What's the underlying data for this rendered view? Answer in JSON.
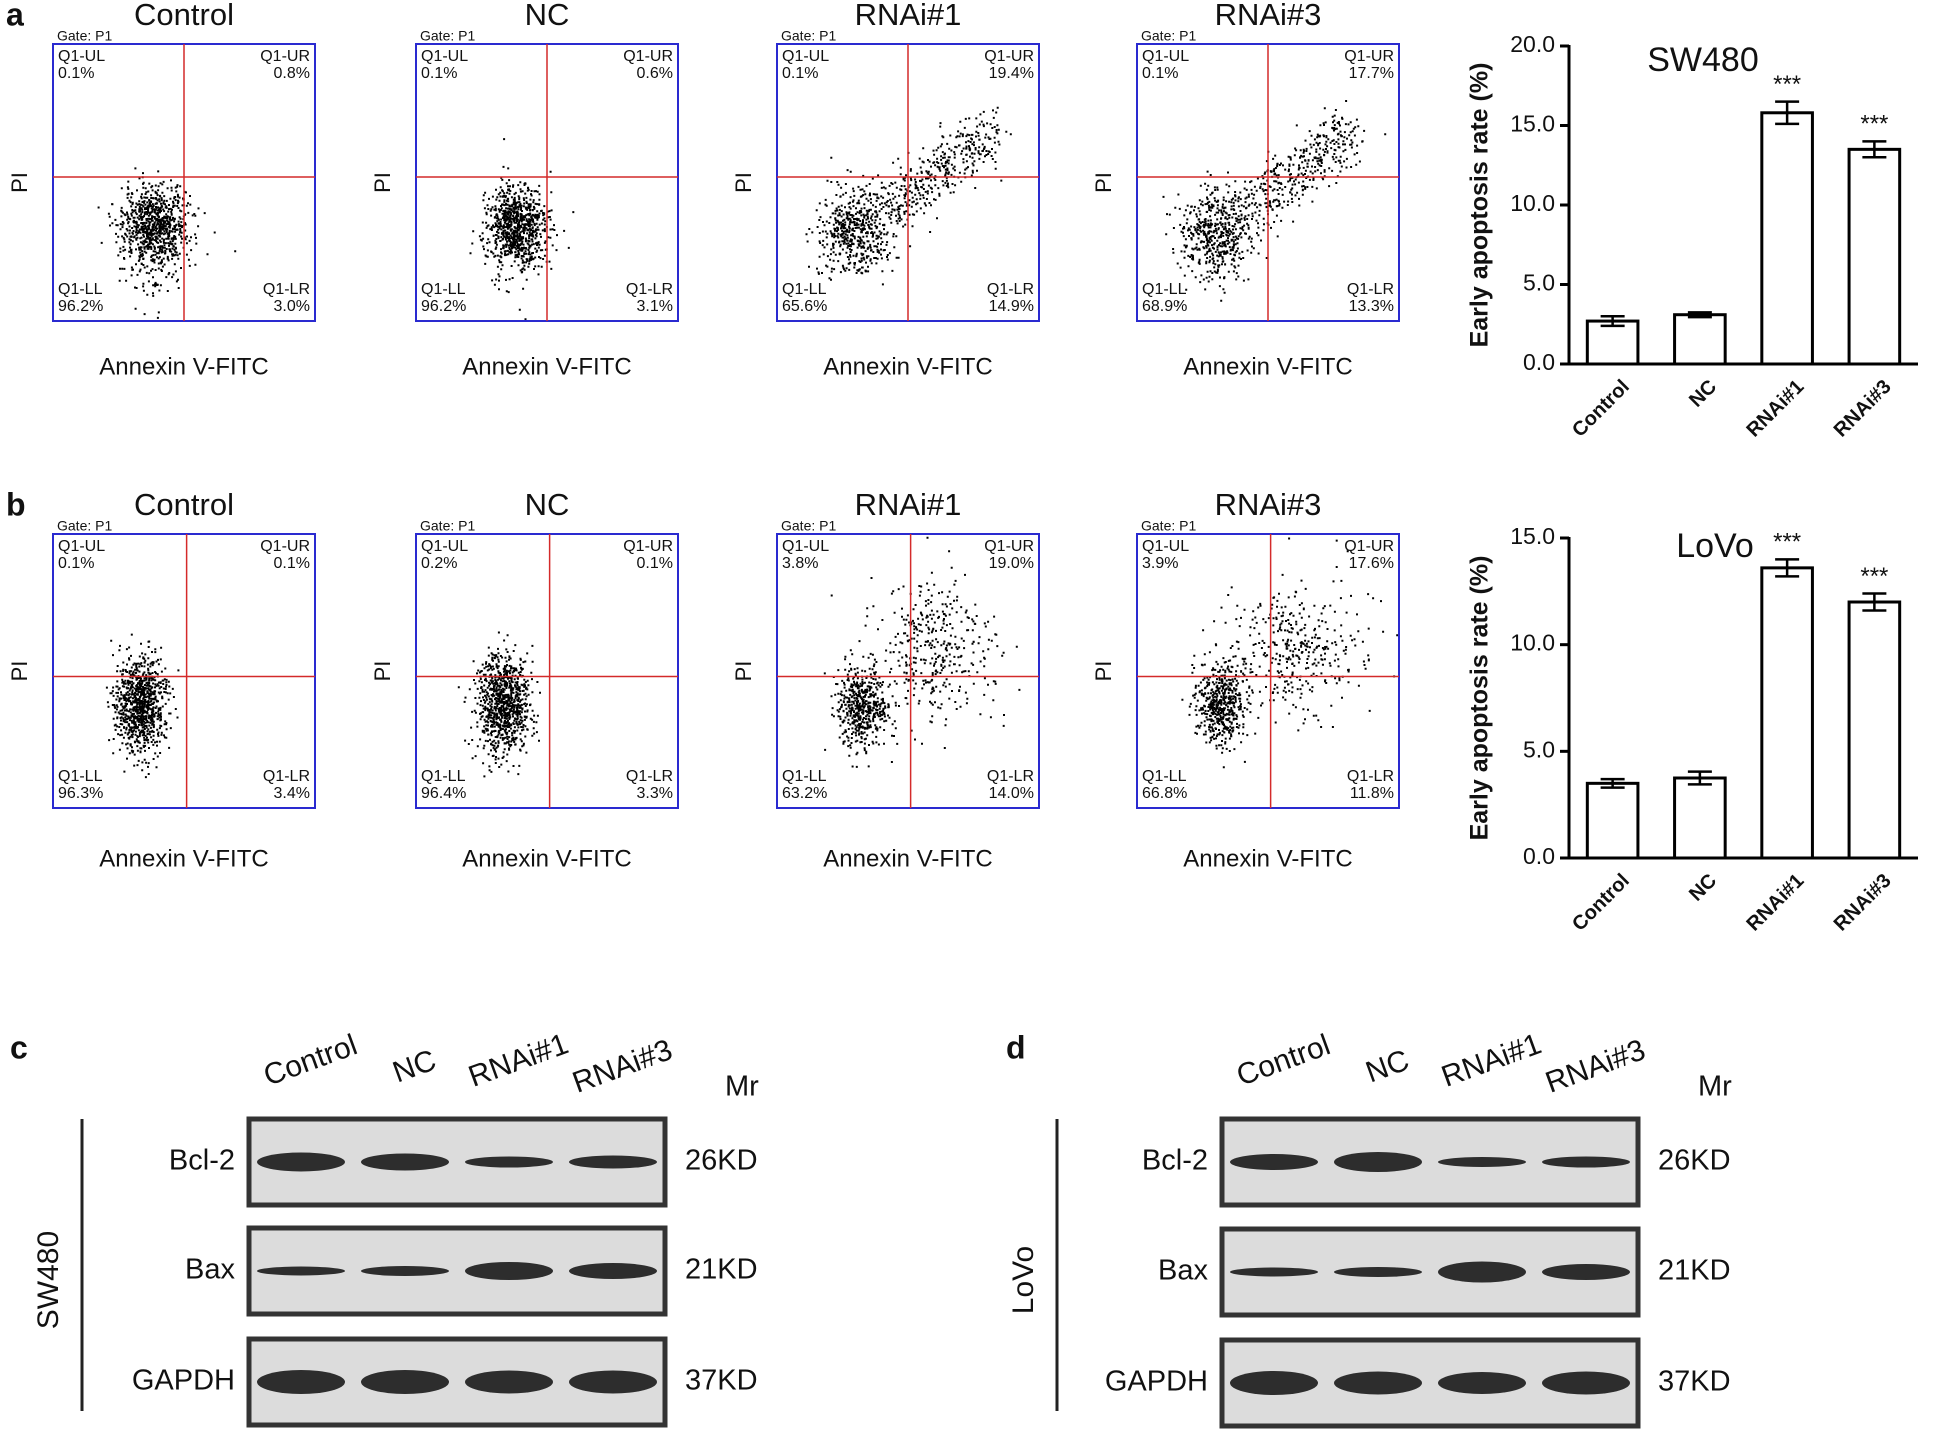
{
  "chart_data": [
    {
      "type": "bar",
      "title": "SW480",
      "y_label": "Early apoptosis rate (%)",
      "categories": [
        "Control",
        "NC",
        "RNAi#1",
        "RNAi#3"
      ],
      "values": [
        2.7,
        3.1,
        15.8,
        13.5
      ],
      "errors": [
        0.3,
        0.15,
        0.7,
        0.5
      ],
      "annotations": [
        null,
        null,
        "***",
        "***"
      ],
      "color": "#ffffff",
      "ylim": [
        0,
        20
      ],
      "yticks": [
        {
          "value": 0,
          "label": "0.0"
        },
        {
          "value": 5,
          "label": "5.0"
        },
        {
          "value": 10,
          "label": "10.0"
        },
        {
          "value": 15,
          "label": "15.0"
        },
        {
          "value": 20,
          "label": "20.0"
        }
      ]
    },
    {
      "type": "bar",
      "title": "LoVo",
      "y_label": "Early apoptosis rate (%)",
      "categories": [
        "Control",
        "NC",
        "RNAi#1",
        "RNAi#3"
      ],
      "values": [
        3.5,
        3.75,
        13.6,
        12.0
      ],
      "errors": [
        0.2,
        0.3,
        0.4,
        0.4
      ],
      "annotations": [
        null,
        null,
        "***",
        "***"
      ],
      "color": "#ffffff",
      "ylim": [
        0,
        15
      ],
      "yticks": [
        {
          "value": 0,
          "label": "0.0"
        },
        {
          "value": 5,
          "label": "5.0"
        },
        {
          "value": 10,
          "label": "10.0"
        },
        {
          "value": 15,
          "label": "15.0"
        }
      ]
    }
  ],
  "flow_panels": [
    {
      "label": "a",
      "plots": [
        {
          "title": "Control",
          "gate": "Gate: P1",
          "x_label": "Annexin V-FITC",
          "y_label": "PI",
          "quadrants": [
            {
              "name": "Q1-UL",
              "percent": "0.1%"
            },
            {
              "name": "Q1-UR",
              "percent": "0.8%"
            },
            {
              "name": "Q1-LL",
              "percent": "96.2%"
            },
            {
              "name": "Q1-LR",
              "percent": "3.0%"
            }
          ]
        },
        {
          "title": "NC",
          "gate": "Gate: P1",
          "x_label": "Annexin V-FITC",
          "y_label": "PI",
          "quadrants": [
            {
              "name": "Q1-UL",
              "percent": "0.1%"
            },
            {
              "name": "Q1-UR",
              "percent": "0.6%"
            },
            {
              "name": "Q1-LL",
              "percent": "96.2%"
            },
            {
              "name": "Q1-LR",
              "percent": "3.1%"
            }
          ]
        },
        {
          "title": "RNAi#1",
          "gate": "Gate: P1",
          "x_label": "Annexin V-FITC",
          "y_label": "PI",
          "quadrants": [
            {
              "name": "Q1-UL",
              "percent": "0.1%"
            },
            {
              "name": "Q1-UR",
              "percent": "19.4%"
            },
            {
              "name": "Q1-LL",
              "percent": "65.6%"
            },
            {
              "name": "Q1-LR",
              "percent": "14.9%"
            }
          ]
        },
        {
          "title": "RNAi#3",
          "gate": "Gate: P1",
          "x_label": "Annexin V-FITC",
          "y_label": "PI",
          "quadrants": [
            {
              "name": "Q1-UL",
              "percent": "0.1%"
            },
            {
              "name": "Q1-UR",
              "percent": "17.7%"
            },
            {
              "name": "Q1-LL",
              "percent": "68.9%"
            },
            {
              "name": "Q1-LR",
              "percent": "13.3%"
            }
          ]
        }
      ]
    },
    {
      "label": "b",
      "plots": [
        {
          "title": "Control",
          "gate": "Gate: P1",
          "x_label": "Annexin V-FITC",
          "y_label": "PI",
          "quadrants": [
            {
              "name": "Q1-UL",
              "percent": "0.1%"
            },
            {
              "name": "Q1-UR",
              "percent": "0.1%"
            },
            {
              "name": "Q1-LL",
              "percent": "96.3%"
            },
            {
              "name": "Q1-LR",
              "percent": "3.4%"
            }
          ]
        },
        {
          "title": "NC",
          "gate": "Gate: P1",
          "x_label": "Annexin V-FITC",
          "y_label": "PI",
          "quadrants": [
            {
              "name": "Q1-UL",
              "percent": "0.2%"
            },
            {
              "name": "Q1-UR",
              "percent": "0.1%"
            },
            {
              "name": "Q1-LL",
              "percent": "96.4%"
            },
            {
              "name": "Q1-LR",
              "percent": "3.3%"
            }
          ]
        },
        {
          "title": "RNAi#1",
          "gate": "Gate: P1",
          "x_label": "Annexin V-FITC",
          "y_label": "PI",
          "quadrants": [
            {
              "name": "Q1-UL",
              "percent": "3.8%"
            },
            {
              "name": "Q1-UR",
              "percent": "19.0%"
            },
            {
              "name": "Q1-LL",
              "percent": "63.2%"
            },
            {
              "name": "Q1-LR",
              "percent": "14.0%"
            }
          ]
        },
        {
          "title": "RNAi#3",
          "gate": "Gate: P1",
          "x_label": "Annexin V-FITC",
          "y_label": "PI",
          "quadrants": [
            {
              "name": "Q1-UL",
              "percent": "3.9%"
            },
            {
              "name": "Q1-UR",
              "percent": "17.6%"
            },
            {
              "name": "Q1-LL",
              "percent": "66.8%"
            },
            {
              "name": "Q1-LR",
              "percent": "11.8%"
            }
          ]
        }
      ]
    }
  ],
  "blots": [
    {
      "label": "c",
      "cell_line": "SW480",
      "lanes": [
        "Control",
        "NC",
        "RNAi#1",
        "RNAi#3"
      ],
      "mr_header": "Mr",
      "rows": [
        {
          "protein": "Bcl-2",
          "mr": "26KD"
        },
        {
          "protein": "Bax",
          "mr": "21KD"
        },
        {
          "protein": "GAPDH",
          "mr": "37KD"
        }
      ]
    },
    {
      "label": "d",
      "cell_line": "LoVo",
      "lanes": [
        "Control",
        "NC",
        "RNAi#1",
        "RNAi#3"
      ],
      "mr_header": "Mr",
      "rows": [
        {
          "protein": "Bcl-2",
          "mr": "26KD"
        },
        {
          "protein": "Bax",
          "mr": "21KD"
        },
        {
          "protein": "GAPDH",
          "mr": "37KD"
        }
      ]
    }
  ]
}
